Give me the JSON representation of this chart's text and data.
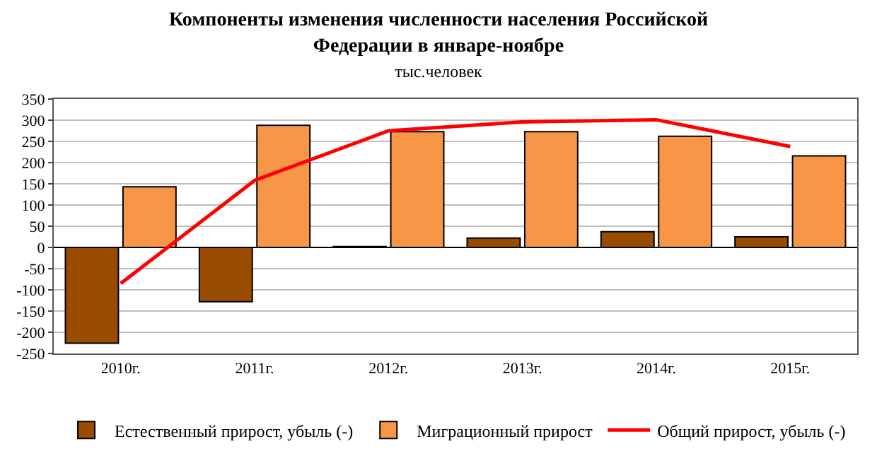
{
  "chart_data": {
    "type": "bar",
    "title": "Компоненты изменения численности населения Российской Федерации в январе-ноябре",
    "subtitle": "тыс.человек",
    "categories": [
      "2010г.",
      "2011г.",
      "2012г.",
      "2013г.",
      "2014г.",
      "2015г."
    ],
    "series": [
      {
        "name": "Естественный прирост, убыль (-)",
        "color": "#994c00",
        "values": [
          -226,
          -128,
          2,
          22,
          37,
          25
        ]
      },
      {
        "name": "Миграционный прирост",
        "color": "#f79646",
        "values": [
          143,
          288,
          273,
          273,
          262,
          216
        ]
      },
      {
        "name": "Общий прирост, убыль (-)",
        "type": "line",
        "color": "#ff0000",
        "values": [
          -85,
          158,
          275,
          296,
          301,
          238
        ]
      }
    ],
    "ylim": [
      -250,
      350
    ],
    "yticks": [
      -250,
      -200,
      -150,
      -100,
      -50,
      0,
      50,
      100,
      150,
      200,
      250,
      300,
      350
    ],
    "grid": "y",
    "legend": "bottom",
    "marker": "none",
    "line_style": "solid"
  }
}
